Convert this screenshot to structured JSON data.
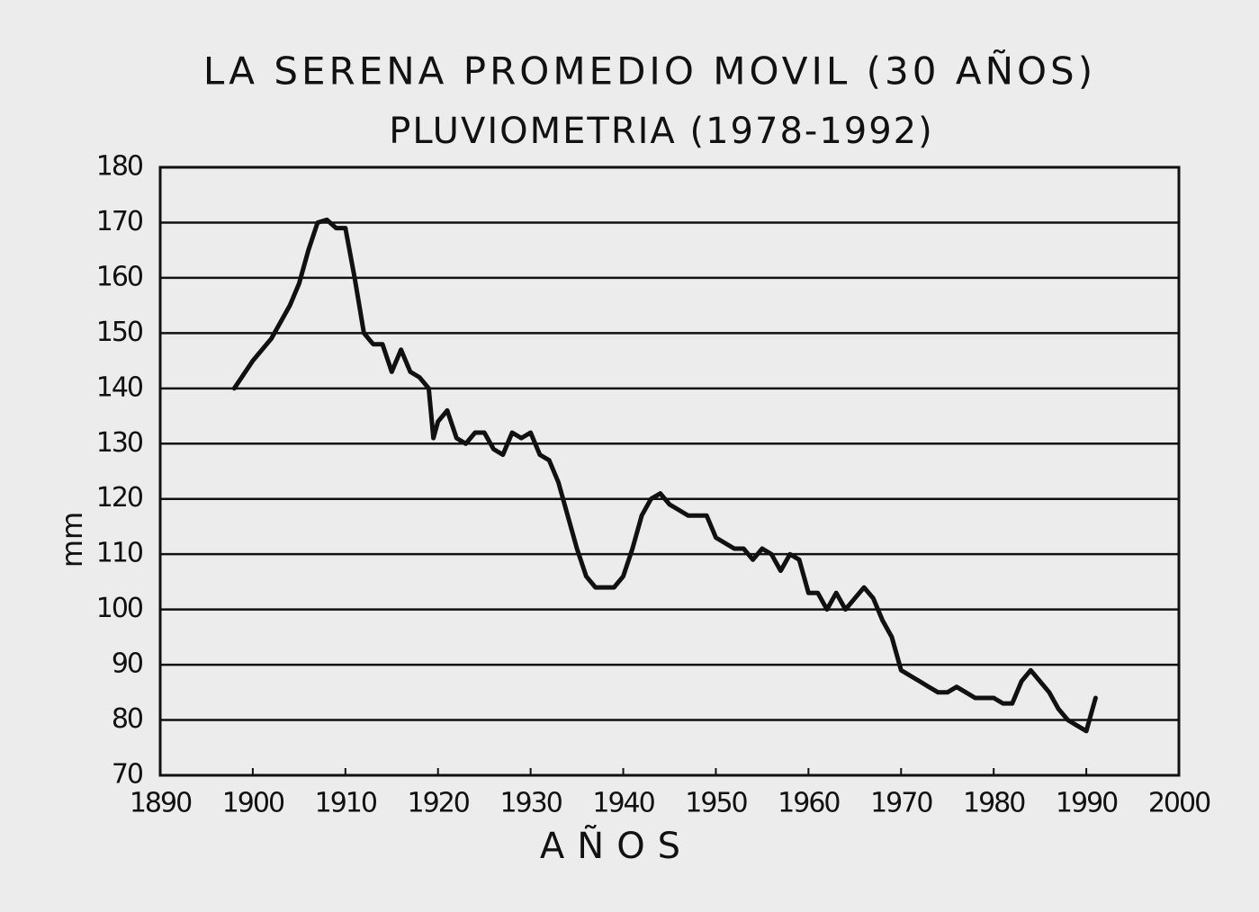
{
  "chart_data": {
    "type": "line",
    "title": "LA SERENA PROMEDIO MOVIL (30 AÑOS)",
    "subtitle": "PLUVIOMETRIA (1978-1992)",
    "x_label": "AÑOS",
    "y_label": "mm",
    "xlim": [
      1890,
      2000
    ],
    "xticks": [
      1890,
      1900,
      1910,
      1920,
      1930,
      1940,
      1950,
      1960,
      1970,
      1980,
      1990,
      2000
    ],
    "ylim": [
      70,
      180
    ],
    "yticks": [
      70,
      80,
      90,
      100,
      110,
      120,
      130,
      140,
      150,
      160,
      170,
      180
    ],
    "grid": true,
    "color": "#111111",
    "x": [
      1898,
      1900,
      1902,
      1904,
      1905,
      1906,
      1907,
      1908,
      1909,
      1910,
      1911,
      1912,
      1913,
      1914,
      1915,
      1916,
      1917,
      1918,
      1919,
      1919.5,
      1920,
      1921,
      1922,
      1923,
      1924,
      1925,
      1926,
      1927,
      1928,
      1929,
      1930,
      1931,
      1932,
      1933,
      1934,
      1935,
      1936,
      1937,
      1938,
      1939,
      1940,
      1941,
      1942,
      1943,
      1944,
      1945,
      1946,
      1947,
      1948,
      1949,
      1950,
      1951,
      1952,
      1953,
      1954,
      1955,
      1956,
      1957,
      1958,
      1959,
      1960,
      1961,
      1962,
      1963,
      1964,
      1965,
      1966,
      1967,
      1968,
      1969,
      1970,
      1971,
      1972,
      1973,
      1974,
      1975,
      1976,
      1977,
      1978,
      1979,
      1980,
      1981,
      1982,
      1983,
      1984,
      1985,
      1986,
      1987,
      1988,
      1989,
      1990,
      1991
    ],
    "values": [
      140,
      145,
      149,
      155,
      159,
      165,
      170,
      170.5,
      169,
      169,
      160,
      150,
      148,
      148,
      143,
      147,
      143,
      142,
      140,
      131,
      134,
      136,
      131,
      130,
      132,
      132,
      129,
      128,
      132,
      131,
      132,
      128,
      127,
      123,
      117,
      111,
      106,
      104,
      104,
      104,
      106,
      111,
      117,
      120,
      121,
      119,
      118,
      117,
      117,
      117,
      113,
      112,
      111,
      111,
      109,
      111,
      110,
      107,
      110,
      109,
      103,
      103,
      100,
      103,
      100,
      102,
      104,
      102,
      98,
      95,
      89,
      88,
      87,
      86,
      85,
      85,
      86,
      85,
      84,
      84,
      84,
      83,
      83,
      87,
      89,
      87,
      85,
      82,
      80,
      79,
      78,
      84
    ]
  }
}
